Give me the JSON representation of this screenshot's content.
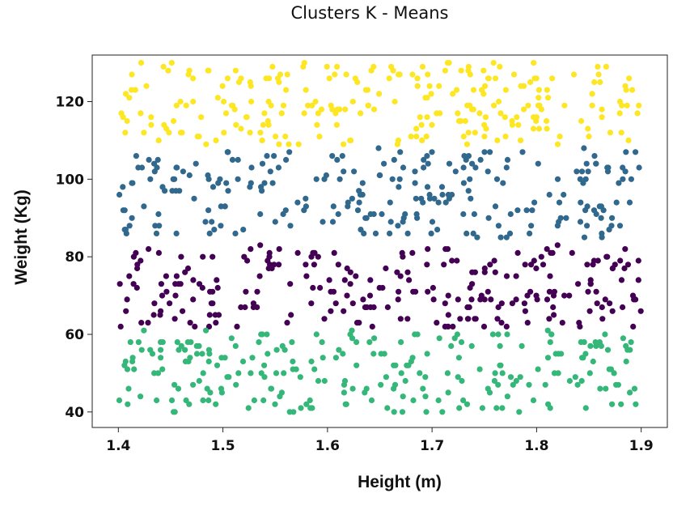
{
  "chart_data": {
    "type": "scatter",
    "title": "Clusters K - Means",
    "xlabel": "Height (m)",
    "ylabel": "Weight (Kg)",
    "xlim": [
      1.375,
      1.925
    ],
    "ylim": [
      36,
      132
    ],
    "xticks": [
      1.4,
      1.5,
      1.6,
      1.7,
      1.8,
      1.9
    ],
    "xtick_labels": [
      "1.4",
      "1.5",
      "1.6",
      "1.7",
      "1.8",
      "1.9"
    ],
    "yticks": [
      40,
      60,
      80,
      100,
      120
    ],
    "ytick_labels": [
      "40",
      "60",
      "80",
      "100",
      "120"
    ],
    "grid": false,
    "legend": "none",
    "point_count_approx": 1000,
    "clusters": [
      {
        "color": "#fde725",
        "y_range": [
          109,
          130
        ]
      },
      {
        "color": "#31688e",
        "y_range": [
          85,
          108
        ]
      },
      {
        "color": "#440154",
        "y_range": [
          62,
          83
        ]
      },
      {
        "color": "#35b779",
        "y_range": [
          40,
          61
        ]
      }
    ],
    "x_range": [
      1.4,
      1.9
    ]
  }
}
